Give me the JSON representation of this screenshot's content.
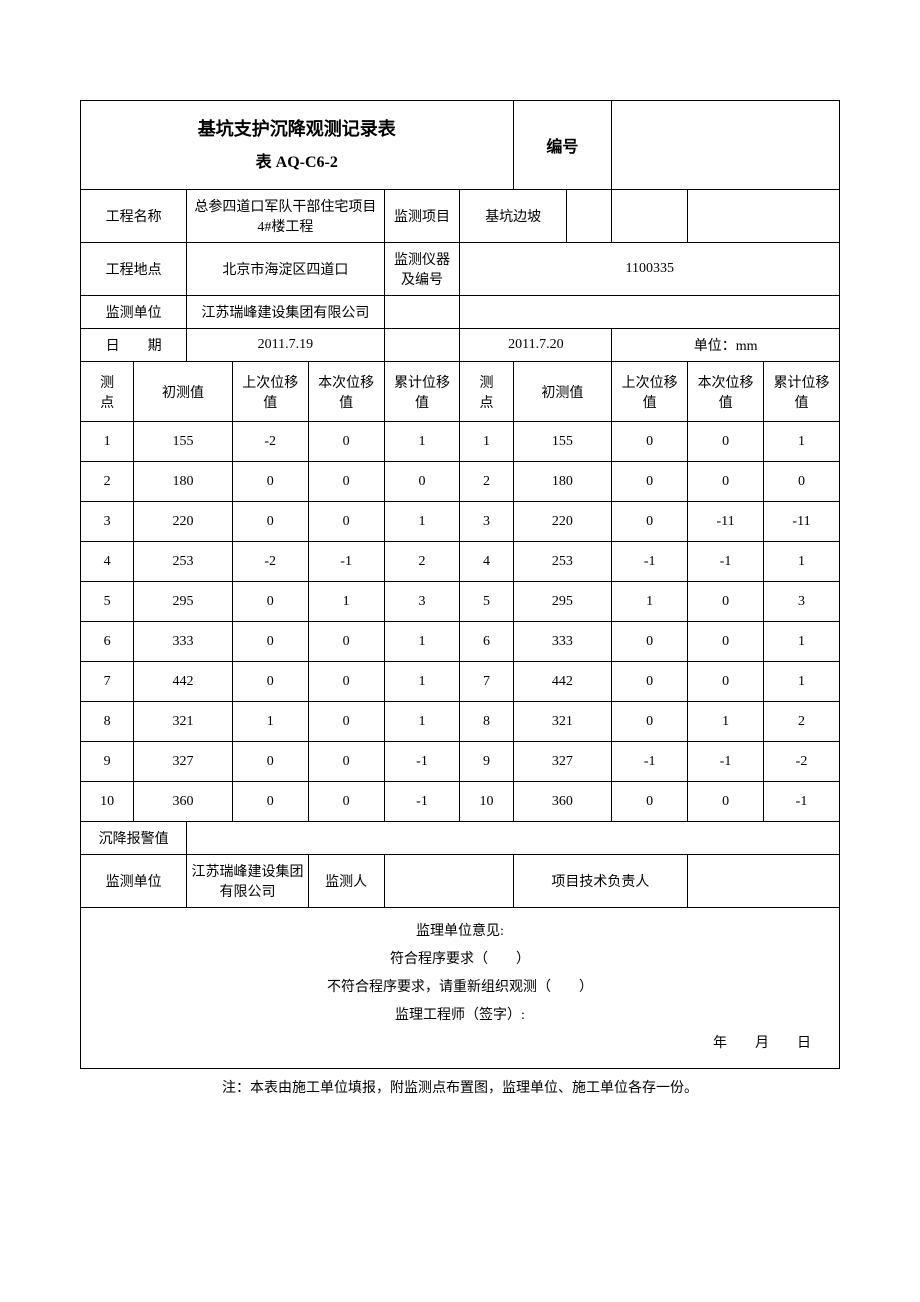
{
  "title": "基坑支护沉降观测记录表",
  "form_code": "表 AQ-C6-2",
  "serial_label": "编号",
  "labels": {
    "project_name": "工程名称",
    "project_location": "工程地点",
    "monitor_unit": "监测单位",
    "monitor_item": "监测项目",
    "monitor_instrument": "监测仪器及编号",
    "date": "日　　期",
    "unit": "单位：mm",
    "point": "测　　点",
    "initial": "初测值",
    "last_disp": "上次位移值",
    "this_disp": "本次位移值",
    "cum_disp": "累计位移值",
    "alarm_value": "沉降报警值",
    "monitor_unit2": "监测单位",
    "monitor_person": "监测人",
    "project_tech_lead": "项目技术负责人"
  },
  "info": {
    "project_name": "总参四道口军队干部住宅项目 4#楼工程",
    "project_location": "北京市海淀区四道口",
    "monitor_unit": "江苏瑞峰建设集团有限公司",
    "monitor_item": "基坑边坡",
    "monitor_instrument": "1100335",
    "date1": "2011.7.19",
    "date2": "2011.7.20",
    "monitor_unit2": "江苏瑞峰建设集团有限公司"
  },
  "rows": [
    {
      "p": "1",
      "init": "155",
      "last": "-2",
      "this": "0",
      "cum": "1",
      "p2": "1",
      "init2": "155",
      "last2": "0",
      "this2": "0",
      "cum2": "1"
    },
    {
      "p": "2",
      "init": "180",
      "last": "0",
      "this": "0",
      "cum": "0",
      "p2": "2",
      "init2": "180",
      "last2": "0",
      "this2": "0",
      "cum2": "0"
    },
    {
      "p": "3",
      "init": "220",
      "last": "0",
      "this": "0",
      "cum": "1",
      "p2": "3",
      "init2": "220",
      "last2": "0",
      "this2": "-11",
      "cum2": "-11"
    },
    {
      "p": "4",
      "init": "253",
      "last": "-2",
      "this": "-1",
      "cum": "2",
      "p2": "4",
      "init2": "253",
      "last2": "-1",
      "this2": "-1",
      "cum2": "1"
    },
    {
      "p": "5",
      "init": "295",
      "last": "0",
      "this": "1",
      "cum": "3",
      "p2": "5",
      "init2": "295",
      "last2": "1",
      "this2": "0",
      "cum2": "3"
    },
    {
      "p": "6",
      "init": "333",
      "last": "0",
      "this": "0",
      "cum": "1",
      "p2": "6",
      "init2": "333",
      "last2": "0",
      "this2": "0",
      "cum2": "1"
    },
    {
      "p": "7",
      "init": "442",
      "last": "0",
      "this": "0",
      "cum": "1",
      "p2": "7",
      "init2": "442",
      "last2": "0",
      "this2": "0",
      "cum2": "1"
    },
    {
      "p": "8",
      "init": "321",
      "last": "1",
      "this": "0",
      "cum": "1",
      "p2": "8",
      "init2": "321",
      "last2": "0",
      "this2": "1",
      "cum2": "2"
    },
    {
      "p": "9",
      "init": "327",
      "last": "0",
      "this": "0",
      "cum": "-1",
      "p2": "9",
      "init2": "327",
      "last2": "-1",
      "this2": "-1",
      "cum2": "-2"
    },
    {
      "p": "10",
      "init": "360",
      "last": "0",
      "this": "0",
      "cum": "-1",
      "p2": "10",
      "init2": "360",
      "last2": "0",
      "this2": "0",
      "cum2": "-1"
    }
  ],
  "opinion": {
    "heading": "监理单位意见:",
    "line1": "符合程序要求（　　）",
    "line2": "不符合程序要求，请重新组织观测（　　）",
    "line3": "监理工程师（签字）:",
    "date": "年　　月　　日"
  },
  "footnote": "注：本表由施工单位填报，附监测点布置图，监理单位、施工单位各存一份。"
}
